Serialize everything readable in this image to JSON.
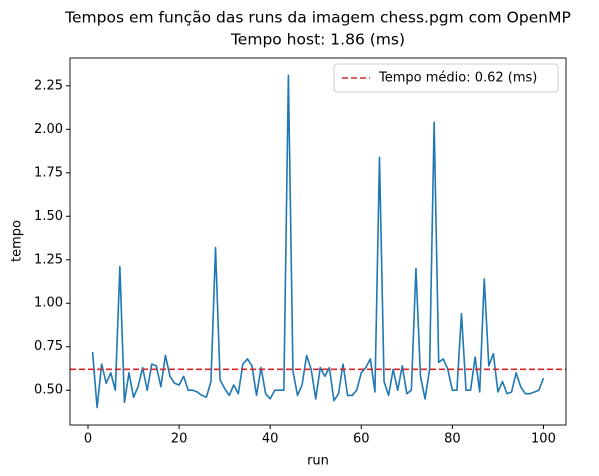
{
  "chart_data": {
    "type": "line",
    "title": "Tempos em função das runs da imagem chess.pgm com OpenMP",
    "subtitle": "Tempo host: 1.86 (ms)",
    "x_label": "run",
    "y_label": "tempo",
    "x": [
      1,
      2,
      3,
      4,
      5,
      6,
      7,
      8,
      9,
      10,
      11,
      12,
      13,
      14,
      15,
      16,
      17,
      18,
      19,
      20,
      21,
      22,
      23,
      24,
      25,
      26,
      27,
      28,
      29,
      30,
      31,
      32,
      33,
      34,
      35,
      36,
      37,
      38,
      39,
      40,
      41,
      42,
      43,
      44,
      45,
      46,
      47,
      48,
      49,
      50,
      51,
      52,
      53,
      54,
      55,
      56,
      57,
      58,
      59,
      60,
      61,
      62,
      63,
      64,
      65,
      66,
      67,
      68,
      69,
      70,
      71,
      72,
      73,
      74,
      75,
      76,
      77,
      78,
      79,
      80,
      81,
      82,
      83,
      84,
      85,
      86,
      87,
      88,
      89,
      90,
      91,
      92,
      93,
      94,
      95,
      96,
      97,
      98,
      99,
      100
    ],
    "series": [
      {
        "color": "#1f77b4",
        "values": [
          0.72,
          0.4,
          0.65,
          0.54,
          0.6,
          0.5,
          1.21,
          0.43,
          0.6,
          0.46,
          0.52,
          0.63,
          0.5,
          0.65,
          0.64,
          0.52,
          0.7,
          0.58,
          0.54,
          0.53,
          0.58,
          0.5,
          0.5,
          0.49,
          0.47,
          0.46,
          0.55,
          1.32,
          0.56,
          0.51,
          0.47,
          0.53,
          0.48,
          0.65,
          0.68,
          0.64,
          0.47,
          0.63,
          0.48,
          0.45,
          0.5,
          0.5,
          0.5,
          2.31,
          0.61,
          0.47,
          0.53,
          0.7,
          0.62,
          0.45,
          0.63,
          0.58,
          0.63,
          0.44,
          0.48,
          0.65,
          0.47,
          0.47,
          0.5,
          0.6,
          0.63,
          0.68,
          0.49,
          1.84,
          0.55,
          0.47,
          0.62,
          0.5,
          0.64,
          0.48,
          0.5,
          1.2,
          0.58,
          0.45,
          0.62,
          2.04,
          0.66,
          0.68,
          0.62,
          0.5,
          0.5,
          0.94,
          0.5,
          0.5,
          0.69,
          0.49,
          1.14,
          0.64,
          0.71,
          0.49,
          0.55,
          0.48,
          0.49,
          0.6,
          0.52,
          0.48,
          0.48,
          0.49,
          0.5,
          0.57
        ]
      }
    ],
    "hline": {
      "name": "Tempo médio: 0.62 (ms)",
      "value": 0.62,
      "color": "#d62728",
      "style": "dashed"
    },
    "legend": "upper right",
    "xlim": [
      -3.95,
      104.95
    ],
    "xticks": [
      0,
      20,
      40,
      60,
      80,
      100
    ],
    "ylim": [
      0.3,
      2.41
    ],
    "yticks": [
      {
        "value": 0.5,
        "label": "0.50"
      },
      {
        "value": 0.75,
        "label": "0.75"
      },
      {
        "value": 1.0,
        "label": "1.00"
      },
      {
        "value": 1.25,
        "label": "1.25"
      },
      {
        "value": 1.5,
        "label": "1.50"
      },
      {
        "value": 1.75,
        "label": "1.75"
      },
      {
        "value": 2.0,
        "label": "2.00"
      },
      {
        "value": 2.25,
        "label": "2.25"
      }
    ]
  }
}
